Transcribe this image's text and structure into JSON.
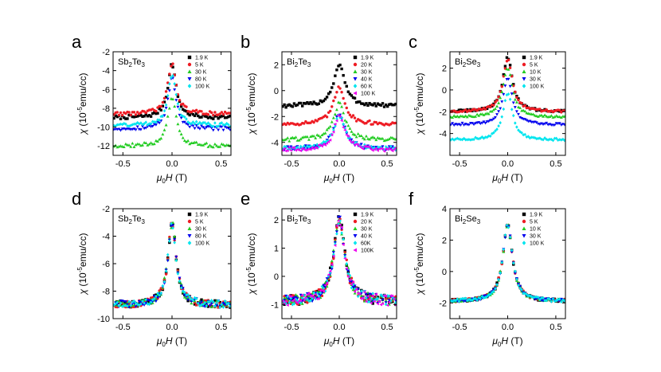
{
  "figure": {
    "xlabel": {
      "mu": "μ",
      "sub": "0",
      "h": "H",
      "unit": " (T)"
    },
    "ylabel": {
      "chi": "χ",
      "pre": " (10",
      "exp": "-5",
      "post": "emu/cc)"
    }
  },
  "chart_data": [
    {
      "type": "scatter",
      "letter": "a",
      "material": {
        "el1": "Sb",
        "n1": "2",
        "el2": "Te",
        "n2": "3"
      },
      "xlim": [
        -0.6,
        0.6
      ],
      "ylim": [
        -13,
        -2
      ],
      "xticks": [
        -0.5,
        0.0,
        0.5
      ],
      "xtick_labels": [
        "-0.5",
        "0.0",
        "0.5"
      ],
      "yticks": [
        -12,
        -10,
        -8,
        -6,
        -4,
        -2
      ],
      "ytick_labels": [
        "-12",
        "-10",
        "-8",
        "-6",
        "-4",
        "-2"
      ],
      "series": [
        {
          "name": "1.9 K",
          "marker": "square",
          "color": "#000000",
          "base": -9.0,
          "peak": -3.3,
          "width": 0.05,
          "noise": 0.2
        },
        {
          "name": "5 K",
          "marker": "circle",
          "color": "#ee1c24",
          "base": -8.6,
          "peak": -3.2,
          "width": 0.05,
          "noise": 0.2
        },
        {
          "name": "30 K",
          "marker": "triangle-up",
          "color": "#22cc22",
          "base": -12.0,
          "peak": -6.8,
          "width": 0.05,
          "noise": 0.2
        },
        {
          "name": "80 K",
          "marker": "triangle-down",
          "color": "#0000ee",
          "base": -10.2,
          "peak": -4.8,
          "width": 0.05,
          "noise": 0.2
        },
        {
          "name": "100 K",
          "marker": "diamond",
          "color": "#00e5ee",
          "base": -9.8,
          "peak": -4.4,
          "width": 0.05,
          "noise": 0.2
        }
      ]
    },
    {
      "type": "scatter",
      "letter": "b",
      "material": {
        "el1": "Bi",
        "n1": "2",
        "el2": "Te",
        "n2": "3"
      },
      "xlim": [
        -0.6,
        0.6
      ],
      "ylim": [
        -5,
        3
      ],
      "xticks": [
        -0.5,
        0.0,
        0.5
      ],
      "xtick_labels": [
        "-0.5",
        "0.0",
        "0.5"
      ],
      "yticks": [
        -4,
        -2,
        0,
        2
      ],
      "ytick_labels": [
        "-4",
        "-2",
        "0",
        "2"
      ],
      "series": [
        {
          "name": "1.9 K",
          "marker": "square",
          "color": "#000000",
          "base": -1.2,
          "peak": 2.0,
          "width": 0.07,
          "noise": 0.15
        },
        {
          "name": "20 K",
          "marker": "circle",
          "color": "#ee1c24",
          "base": -2.6,
          "peak": 0.3,
          "width": 0.07,
          "noise": 0.15
        },
        {
          "name": "30 K",
          "marker": "triangle-up",
          "color": "#22cc22",
          "base": -3.8,
          "peak": -1.0,
          "width": 0.07,
          "noise": 0.15
        },
        {
          "name": "40 K",
          "marker": "triangle-down",
          "color": "#0000ee",
          "base": -4.5,
          "peak": -1.8,
          "width": 0.07,
          "noise": 0.15
        },
        {
          "name": "60 K",
          "marker": "diamond",
          "color": "#00e5ee",
          "base": -4.5,
          "peak": -1.9,
          "width": 0.07,
          "noise": 0.15
        },
        {
          "name": "100 K",
          "marker": "triangle-left",
          "color": "#ee00ee",
          "base": -4.6,
          "peak": -2.0,
          "width": 0.07,
          "noise": 0.15
        }
      ]
    },
    {
      "type": "scatter",
      "letter": "c",
      "material": {
        "el1": "Bi",
        "n1": "2",
        "el2": "Se",
        "n2": "3"
      },
      "xlim": [
        -0.6,
        0.6
      ],
      "ylim": [
        -6,
        3.5
      ],
      "xticks": [
        -0.5,
        0.0,
        0.5
      ],
      "xtick_labels": [
        "-0.5",
        "0.0",
        "0.5"
      ],
      "yticks": [
        -4,
        -2,
        0,
        2
      ],
      "ytick_labels": [
        "-4",
        "-2",
        "0",
        "2"
      ],
      "series": [
        {
          "name": "1.9 K",
          "marker": "square",
          "color": "#000000",
          "base": -2.0,
          "peak": 3.0,
          "width": 0.06,
          "noise": 0.1
        },
        {
          "name": "5 K",
          "marker": "circle",
          "color": "#ee1c24",
          "base": -2.0,
          "peak": 2.8,
          "width": 0.06,
          "noise": 0.1
        },
        {
          "name": "10 K",
          "marker": "triangle-up",
          "color": "#22cc22",
          "base": -2.5,
          "peak": 2.0,
          "width": 0.06,
          "noise": 0.1
        },
        {
          "name": "30 K",
          "marker": "triangle-down",
          "color": "#0000ee",
          "base": -3.2,
          "peak": 1.0,
          "width": 0.06,
          "noise": 0.1
        },
        {
          "name": "100 K",
          "marker": "diamond",
          "color": "#00e5ee",
          "base": -4.6,
          "peak": -0.3,
          "width": 0.06,
          "noise": 0.1
        }
      ]
    },
    {
      "type": "scatter",
      "letter": "d",
      "material": {
        "el1": "Sb",
        "n1": "2",
        "el2": "Te",
        "n2": "3"
      },
      "xlim": [
        -0.6,
        0.6
      ],
      "ylim": [
        -10,
        -2
      ],
      "xticks": [
        -0.5,
        0.0,
        0.5
      ],
      "xtick_labels": [
        "-0.5",
        "0.0",
        "0.5"
      ],
      "yticks": [
        -10,
        -8,
        -6,
        -4,
        -2
      ],
      "ytick_labels": [
        "-10",
        "-8",
        "-6",
        "-4",
        "-2"
      ],
      "series": [
        {
          "name": "1.9 K",
          "marker": "square",
          "color": "#000000",
          "base": -9.0,
          "peak": -3.0,
          "width": 0.05,
          "noise": 0.25
        },
        {
          "name": "5 K",
          "marker": "circle",
          "color": "#ee1c24",
          "base": -9.0,
          "peak": -3.0,
          "width": 0.05,
          "noise": 0.25
        },
        {
          "name": "30 K",
          "marker": "triangle-up",
          "color": "#22cc22",
          "base": -9.0,
          "peak": -3.0,
          "width": 0.05,
          "noise": 0.25
        },
        {
          "name": "80 K",
          "marker": "triangle-down",
          "color": "#0000ee",
          "base": -9.0,
          "peak": -3.0,
          "width": 0.05,
          "noise": 0.25
        },
        {
          "name": "100 K",
          "marker": "diamond",
          "color": "#00e5ee",
          "base": -9.0,
          "peak": -3.0,
          "width": 0.05,
          "noise": 0.25
        }
      ]
    },
    {
      "type": "scatter",
      "letter": "e",
      "material": {
        "el1": "Bi",
        "n1": "2",
        "el2": "Te",
        "n2": "3"
      },
      "xlim": [
        -0.6,
        0.6
      ],
      "ylim": [
        -1.5,
        2.4
      ],
      "xticks": [
        -0.5,
        0.0,
        0.5
      ],
      "xtick_labels": [
        "-0.5",
        "0.0",
        "0.5"
      ],
      "yticks": [
        -1,
        0,
        1,
        2
      ],
      "ytick_labels": [
        "-1",
        "0",
        "1",
        "2"
      ],
      "series": [
        {
          "name": "1.9 K",
          "marker": "square",
          "color": "#000000",
          "base": -0.9,
          "peak": 2.0,
          "width": 0.07,
          "noise": 0.18
        },
        {
          "name": "20 K",
          "marker": "circle",
          "color": "#ee1c24",
          "base": -0.9,
          "peak": 2.0,
          "width": 0.07,
          "noise": 0.18
        },
        {
          "name": "30 K",
          "marker": "triangle-up",
          "color": "#22cc22",
          "base": -0.9,
          "peak": 2.0,
          "width": 0.07,
          "noise": 0.18
        },
        {
          "name": "40 K",
          "marker": "triangle-down",
          "color": "#0000ee",
          "base": -0.9,
          "peak": 2.0,
          "width": 0.07,
          "noise": 0.18
        },
        {
          "name": "60K",
          "marker": "diamond",
          "color": "#00e5ee",
          "base": -0.9,
          "peak": 2.0,
          "width": 0.07,
          "noise": 0.18
        },
        {
          "name": "100K",
          "marker": "triangle-left",
          "color": "#ee00ee",
          "base": -0.9,
          "peak": 2.0,
          "width": 0.07,
          "noise": 0.18
        }
      ]
    },
    {
      "type": "scatter",
      "letter": "f",
      "material": {
        "el1": "Bi",
        "n1": "2",
        "el2": "Se",
        "n2": "3"
      },
      "xlim": [
        -0.6,
        0.6
      ],
      "ylim": [
        -3,
        4
      ],
      "xticks": [
        -0.5,
        0.0,
        0.5
      ],
      "xtick_labels": [
        "-0.5",
        "0.0",
        "0.5"
      ],
      "yticks": [
        -2,
        0,
        2,
        4
      ],
      "ytick_labels": [
        "-2",
        "0",
        "2",
        "4"
      ],
      "series": [
        {
          "name": "1.9 K",
          "marker": "square",
          "color": "#000000",
          "base": -1.9,
          "peak": 3.0,
          "width": 0.06,
          "noise": 0.1
        },
        {
          "name": "5 K",
          "marker": "circle",
          "color": "#ee1c24",
          "base": -1.9,
          "peak": 3.0,
          "width": 0.06,
          "noise": 0.1
        },
        {
          "name": "10 K",
          "marker": "triangle-up",
          "color": "#22cc22",
          "base": -1.9,
          "peak": 3.0,
          "width": 0.06,
          "noise": 0.1
        },
        {
          "name": "30 K",
          "marker": "triangle-down",
          "color": "#0000ee",
          "base": -1.9,
          "peak": 3.0,
          "width": 0.06,
          "noise": 0.1
        },
        {
          "name": "100 K",
          "marker": "diamond",
          "color": "#00e5ee",
          "base": -1.9,
          "peak": 3.0,
          "width": 0.06,
          "noise": 0.1
        }
      ]
    }
  ]
}
